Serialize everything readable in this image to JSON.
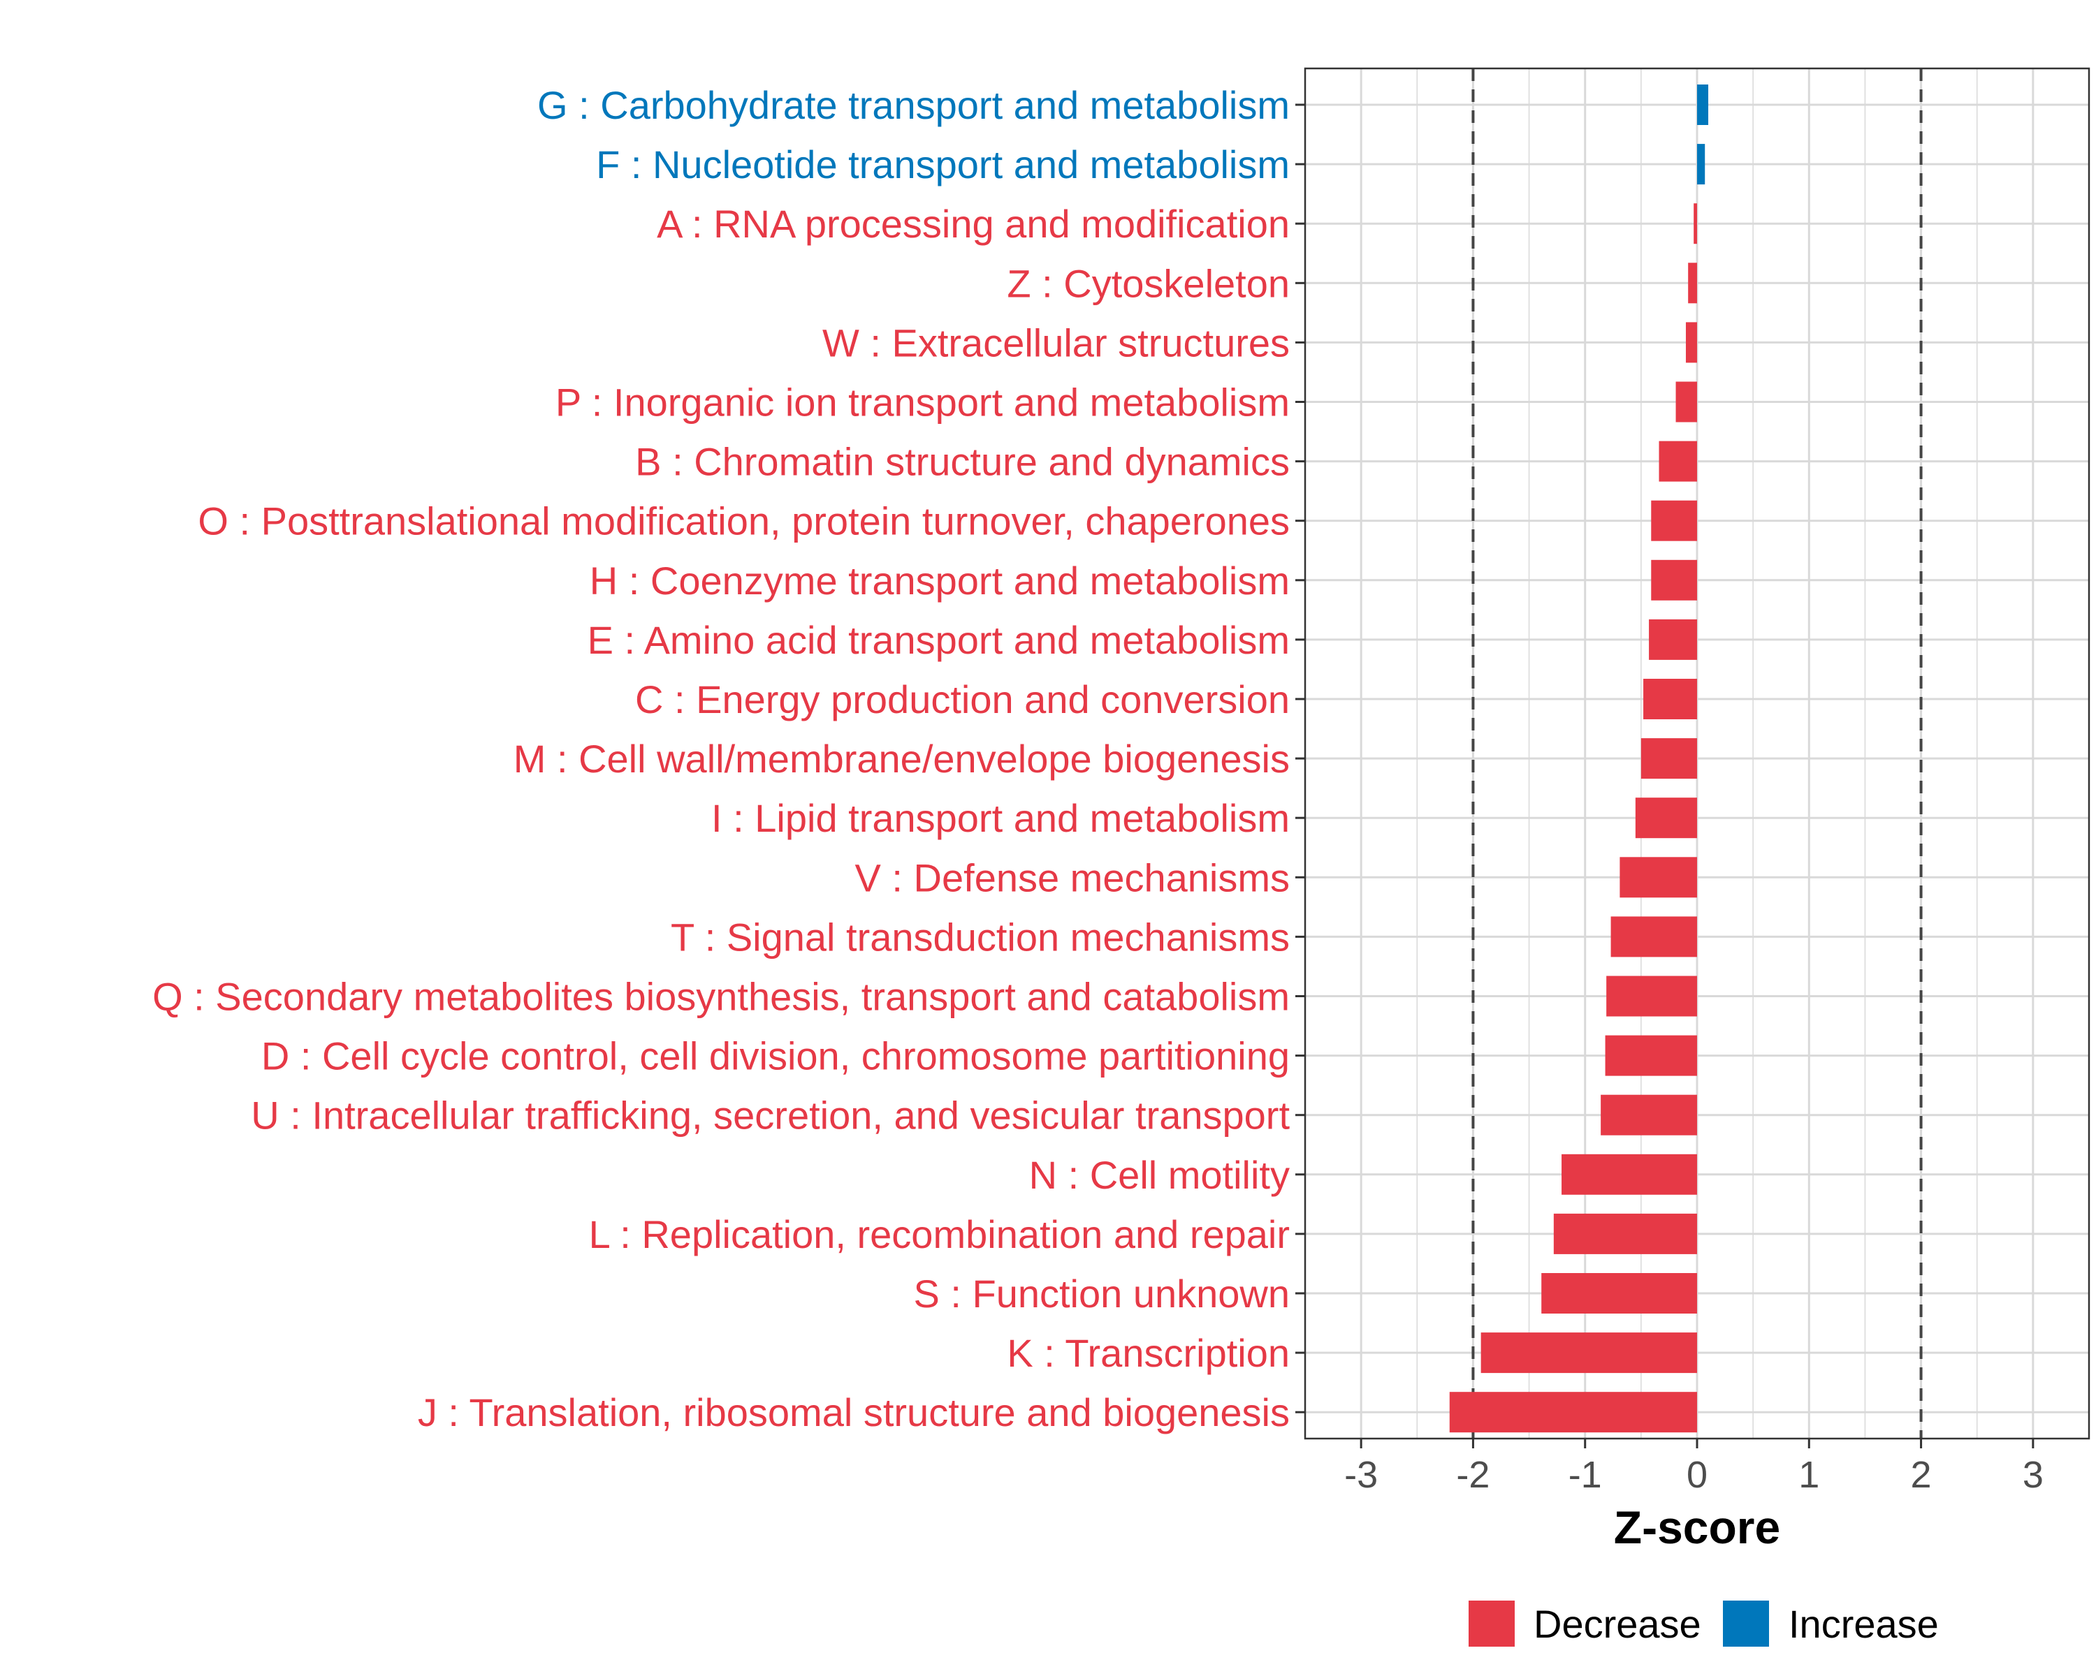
{
  "chart_data": {
    "type": "bar",
    "orientation": "horizontal",
    "categories": [
      "G : Carbohydrate transport and metabolism",
      "F : Nucleotide transport and metabolism",
      "A : RNA processing and modification",
      "Z : Cytoskeleton",
      "W : Extracellular structures",
      "P : Inorganic ion transport and metabolism",
      "B : Chromatin structure and dynamics",
      "O : Posttranslational modification, protein turnover, chaperones",
      "H : Coenzyme transport and metabolism",
      "E : Amino acid transport and metabolism",
      "C : Energy production and conversion",
      "M : Cell wall/membrane/envelope biogenesis",
      "I : Lipid transport and metabolism",
      "V : Defense mechanisms",
      "T : Signal transduction mechanisms",
      "Q : Secondary metabolites biosynthesis, transport and catabolism",
      "D : Cell cycle control, cell division, chromosome partitioning",
      "U : Intracellular trafficking, secretion, and vesicular transport",
      "N : Cell motility",
      "L : Replication, recombination and repair",
      "S : Function unknown",
      "K : Transcription",
      "J : Translation, ribosomal structure and biogenesis"
    ],
    "values": [
      0.1,
      0.07,
      -0.03,
      -0.08,
      -0.1,
      -0.19,
      -0.34,
      -0.41,
      -0.41,
      -0.43,
      -0.48,
      -0.5,
      -0.55,
      -0.69,
      -0.77,
      -0.81,
      -0.82,
      -0.86,
      -1.21,
      -1.28,
      -1.39,
      -1.93,
      -2.21
    ],
    "series_colors": {
      "Decrease": "#e63946",
      "Increase": "#0077bb"
    },
    "title": "",
    "xlabel": "Z-score",
    "ylabel": "",
    "xlim": [
      -3.5,
      3.5
    ],
    "xticks": [
      -3,
      -2,
      -1,
      0,
      1,
      2,
      3
    ],
    "xtick_labels": [
      "-3",
      "-2",
      "-1",
      "0",
      "1",
      "2",
      "3"
    ],
    "reference_lines": [
      -2,
      2
    ],
    "grid": true,
    "legend": {
      "position": "bottom",
      "entries": [
        {
          "label": "Decrease",
          "color": "#e63946"
        },
        {
          "label": "Increase",
          "color": "#0077bb"
        }
      ]
    }
  }
}
